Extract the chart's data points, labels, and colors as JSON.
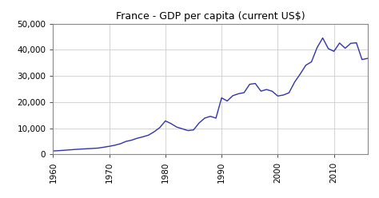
{
  "title": "France - GDP per capita (current US$)",
  "line_color": "#3333aa",
  "line_width": 1.0,
  "background_color": "#ffffff",
  "grid_color": "#cccccc",
  "ylim": [
    0,
    50000
  ],
  "xlim": [
    1960,
    2016
  ],
  "yticks": [
    0,
    10000,
    20000,
    30000,
    40000,
    50000
  ],
  "xticks": [
    1960,
    1970,
    1980,
    1990,
    2000,
    2010
  ],
  "years": [
    1960,
    1961,
    1962,
    1963,
    1964,
    1965,
    1966,
    1967,
    1968,
    1969,
    1970,
    1971,
    1972,
    1973,
    1974,
    1975,
    1976,
    1977,
    1978,
    1979,
    1980,
    1981,
    1982,
    1983,
    1984,
    1985,
    1986,
    1987,
    1988,
    1989,
    1990,
    1991,
    1992,
    1993,
    1994,
    1995,
    1996,
    1997,
    1998,
    1999,
    2000,
    2001,
    2002,
    2003,
    2004,
    2005,
    2006,
    2007,
    2008,
    2009,
    2010,
    2011,
    2012,
    2013,
    2014,
    2015,
    2016
  ],
  "gdp": [
    1332,
    1453,
    1602,
    1762,
    1928,
    2052,
    2183,
    2300,
    2430,
    2760,
    3112,
    3530,
    4105,
    5000,
    5475,
    6209,
    6748,
    7400,
    8680,
    10280,
    12832,
    11800,
    10480,
    9820,
    9130,
    9375,
    12040,
    13900,
    14590,
    13890,
    21648,
    20448,
    22493,
    23218,
    23640,
    26849,
    27156,
    24226,
    24843,
    24183,
    22357,
    22736,
    23596,
    27674,
    30780,
    34142,
    35427,
    40859,
    44574,
    40488,
    39448,
    42631,
    40640,
    42508,
    42722,
    36305,
    36752
  ]
}
